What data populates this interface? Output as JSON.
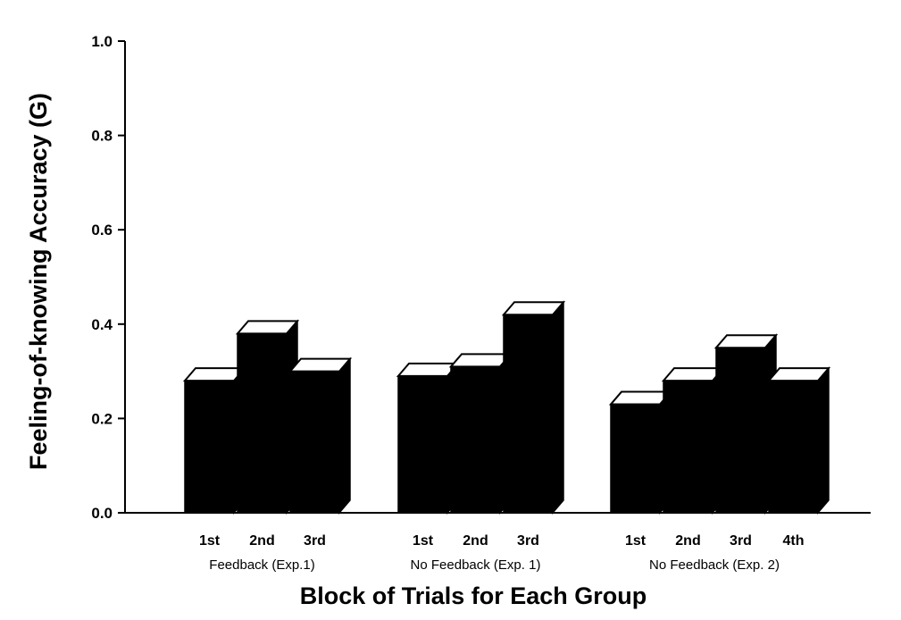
{
  "chart_data": {
    "type": "bar",
    "style": "3d",
    "xlabel": "Block of Trials for Each Group",
    "ylabel": "Feeling-of-knowing Accuracy (G)",
    "ylim": [
      0,
      1.0
    ],
    "yticks": [
      "0.0",
      "0.2",
      "0.4",
      "0.6",
      "0.8",
      "1.0"
    ],
    "groups": [
      {
        "name": "Feedback (Exp.1)",
        "categories": [
          "1st",
          "2nd",
          "3rd"
        ],
        "values": [
          0.28,
          0.38,
          0.3
        ]
      },
      {
        "name": "No Feedback (Exp. 1)",
        "categories": [
          "1st",
          "2nd",
          "3rd"
        ],
        "values": [
          0.29,
          0.31,
          0.42
        ]
      },
      {
        "name": "No Feedback (Exp. 2)",
        "categories": [
          "1st",
          "2nd",
          "3rd",
          "4th"
        ],
        "values": [
          0.23,
          0.28,
          0.35,
          0.28
        ]
      }
    ],
    "bar_color": "#000000",
    "bar_top_color": "#ffffff"
  }
}
